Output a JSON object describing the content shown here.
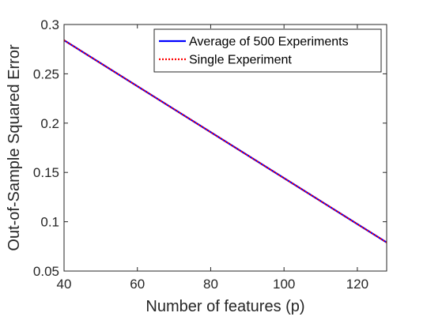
{
  "chart_data": {
    "type": "line",
    "title": "",
    "xlabel": "Number of features (p)",
    "ylabel": "Out-of-Sample Squared Error",
    "xlim": [
      40,
      128
    ],
    "ylim": [
      0.05,
      0.3
    ],
    "xticks": [
      40,
      60,
      80,
      100,
      120
    ],
    "yticks": [
      0.05,
      0.1,
      0.15,
      0.2,
      0.25,
      0.3
    ],
    "xtick_labels": [
      "40",
      "60",
      "80",
      "100",
      "120"
    ],
    "ytick_labels": [
      "0.05",
      "0.1",
      "0.15",
      "0.2",
      "0.25",
      "0.3"
    ],
    "grid": false,
    "legend_position": "top-right",
    "series": [
      {
        "name": "Average of 500 Experiments",
        "color": "#0000ff",
        "style": "solid",
        "x": [
          40,
          128
        ],
        "y": [
          0.284,
          0.079
        ]
      },
      {
        "name": "Single Experiment",
        "color": "#ff0000",
        "style": "dotted",
        "x": [
          40,
          128
        ],
        "y": [
          0.284,
          0.079
        ]
      }
    ]
  }
}
